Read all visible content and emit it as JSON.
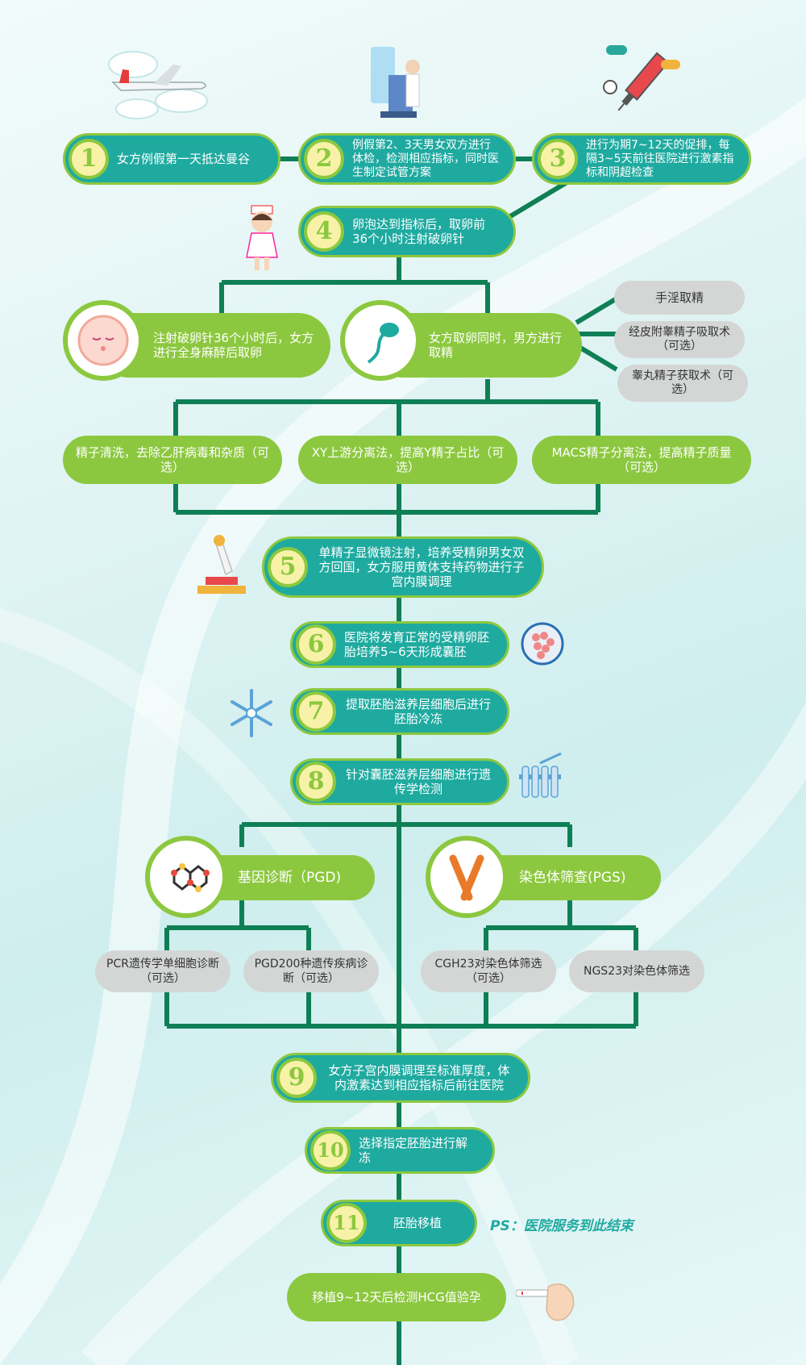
{
  "steps": {
    "s1": {
      "num": "1",
      "text": "女方例假第一天抵达曼谷"
    },
    "s2": {
      "num": "2",
      "text": "例假第2、3天男女双方进行体检，检测相应指标，同时医生制定试管方案"
    },
    "s3": {
      "num": "3",
      "text": "进行为期7~12天的促排，每隔3~5天前往医院进行激素指标和阴超检查"
    },
    "s4": {
      "num": "4",
      "text": "卵泡达到指标后，取卵前36个小时注射破卵针"
    },
    "s5": {
      "num": "5",
      "text": "单精子显微镜注射，培养受精卵男女双方回国，女方服用黄体支持药物进行子宫内膜调理"
    },
    "s6": {
      "num": "6",
      "text": "医院将发育正常的受精卵胚胎培养5~6天形成囊胚"
    },
    "s7": {
      "num": "7",
      "text": "提取胚胎滋养层细胞后进行胚胎冷冻"
    },
    "s8": {
      "num": "8",
      "text": "针对囊胚滋养层细胞进行遗传学检测"
    },
    "s9": {
      "num": "9",
      "text": "女方子宫内膜调理至标准厚度，体内激素达到相应指标后前往医院"
    },
    "s10": {
      "num": "10",
      "text": "选择指定胚胎进行解冻"
    },
    "s11": {
      "num": "11",
      "text": "胚胎移植"
    }
  },
  "retrieval": {
    "egg": "注射破卵针36个小时后，女方进行全身麻醉后取卵",
    "sperm": "女方取卵同时，男方进行取精",
    "options": [
      "手淫取精",
      "经皮附睾精子吸取术（可选）",
      "睾丸精子获取术（可选）"
    ]
  },
  "sperm_processing": [
    "精子清洗，去除乙肝病毒和杂质（可选）",
    "XY上游分离法，提高Y精子占比（可选）",
    "MACS精子分离法，提高精子质量（可选）"
  ],
  "testing": {
    "pgd": {
      "label": "基因诊断（PGD)",
      "options": [
        "PCR遗传学单细胞诊断（可选）",
        "PGD200种遗传疾病诊断（可选）"
      ]
    },
    "pgs": {
      "label": "染色体筛查(PGS)",
      "options": [
        "CGH23对染色体筛选（可选）",
        "NGS23对染色体筛选"
      ]
    }
  },
  "final": "移植9~12天后检测HCG值验孕",
  "ps_note": "PS：医院服务到此结束",
  "colors": {
    "teal": "#1faaa0",
    "green": "#8cc83f",
    "line": "#0f7f55",
    "gray": "#d4d6d6"
  }
}
